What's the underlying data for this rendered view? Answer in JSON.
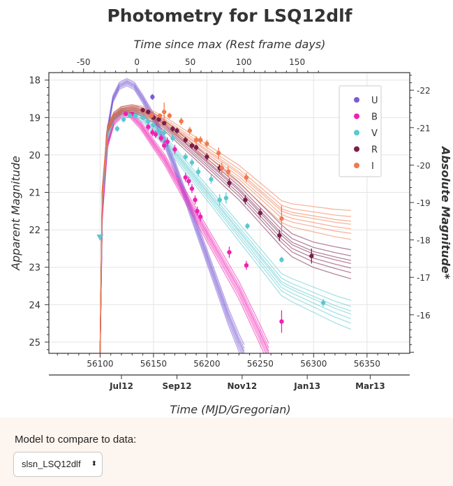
{
  "chart_data": {
    "type": "line",
    "title": "Photometry for LSQ12dlf",
    "xlabel": "Time (MJD/Gregorian)",
    "x2label": "Time since max (Rest frame days)",
    "ylabel": "Apparent Magnitude",
    "y2label": "Absolute Magnitude*",
    "xlim": [
      56052,
      56390
    ],
    "ylim": [
      25.3,
      17.8
    ],
    "y_inverted": true,
    "grid": true,
    "legend_position": "top-right",
    "x_ticks": [
      56100,
      56150,
      56200,
      56250,
      56300,
      56350
    ],
    "x_tick_labels": [
      "56100",
      "56150",
      "56200",
      "56250",
      "56300",
      "56350"
    ],
    "date_ticks": [
      {
        "mjd": 56120,
        "label": "Jul12"
      },
      {
        "mjd": 56172,
        "label": "Sep12"
      },
      {
        "mjd": 56233,
        "label": "Nov12"
      },
      {
        "mjd": 56294,
        "label": "Jan13"
      },
      {
        "mjd": 56353,
        "label": "Mar13"
      }
    ],
    "rest_ticks": [
      {
        "value": -50,
        "label": "-50"
      },
      {
        "value": 0,
        "label": "0"
      },
      {
        "value": 50,
        "label": "50"
      },
      {
        "value": 100,
        "label": "100"
      },
      {
        "value": 150,
        "label": "150"
      }
    ],
    "y_ticks": [
      18,
      19,
      20,
      21,
      22,
      23,
      24,
      25
    ],
    "y_tick_labels": [
      "18",
      "19",
      "20",
      "21",
      "22",
      "23",
      "24",
      "25"
    ],
    "abs_ticks": [
      {
        "value": -22,
        "label": "-22"
      },
      {
        "value": -21,
        "label": "-21"
      },
      {
        "value": -20,
        "label": "-20"
      },
      {
        "value": -19,
        "label": "-19"
      },
      {
        "value": -18,
        "label": "-18"
      },
      {
        "value": -17,
        "label": "-17"
      },
      {
        "value": -16,
        "label": "-16"
      }
    ],
    "series": [
      {
        "name": "U",
        "color": "#7b5bd6",
        "points": [
          [
            56149,
            18.45,
            0.08
          ]
        ],
        "model": [
          [
            56100,
            25.3
          ],
          [
            56102,
            21.5
          ],
          [
            56106,
            19.5
          ],
          [
            56112,
            18.5
          ],
          [
            56118,
            18.15
          ],
          [
            56125,
            18.05
          ],
          [
            56132,
            18.15
          ],
          [
            56140,
            18.5
          ],
          [
            56150,
            19.0
          ],
          [
            56160,
            19.6
          ],
          [
            56170,
            20.3
          ],
          [
            56180,
            21.1
          ],
          [
            56190,
            21.9
          ],
          [
            56200,
            22.7
          ],
          [
            56210,
            23.5
          ],
          [
            56220,
            24.3
          ],
          [
            56230,
            25.0
          ],
          [
            56235,
            25.3
          ]
        ],
        "model_end": 56235
      },
      {
        "name": "B",
        "color": "#f020b4",
        "points": [
          [
            56124,
            18.9,
            0.06
          ],
          [
            56130,
            18.9,
            0.05
          ],
          [
            56140,
            19.0,
            0.06
          ],
          [
            56145,
            19.25,
            0.1
          ],
          [
            56149,
            19.4,
            0.1
          ],
          [
            56152,
            19.45,
            0.1
          ],
          [
            56157,
            19.55,
            0.1
          ],
          [
            56160,
            19.75,
            0.12
          ],
          [
            56163,
            19.65,
            0.12
          ],
          [
            56170,
            19.85,
            0.12
          ],
          [
            56180,
            20.6,
            0.12
          ],
          [
            56183,
            20.7,
            0.12
          ],
          [
            56186,
            20.9,
            0.12
          ],
          [
            56189,
            21.2,
            0.12
          ],
          [
            56191,
            21.5,
            0.12
          ],
          [
            56194,
            21.65,
            0.12
          ],
          [
            56221,
            22.6,
            0.15
          ],
          [
            56237,
            22.95,
            0.12
          ],
          [
            56270,
            24.45,
            0.3
          ]
        ],
        "model": [
          [
            56100,
            25.3
          ],
          [
            56102,
            21.6
          ],
          [
            56107,
            19.7
          ],
          [
            56113,
            19.1
          ],
          [
            56120,
            18.9
          ],
          [
            56128,
            18.9
          ],
          [
            56138,
            19.2
          ],
          [
            56150,
            19.7
          ],
          [
            56160,
            20.1
          ],
          [
            56170,
            20.6
          ],
          [
            56180,
            21.1
          ],
          [
            56190,
            21.6
          ],
          [
            56200,
            22.1
          ],
          [
            56210,
            22.6
          ],
          [
            56220,
            23.1
          ],
          [
            56230,
            23.6
          ],
          [
            56240,
            24.2
          ],
          [
            56250,
            24.8
          ],
          [
            56258,
            25.3
          ]
        ],
        "model_end": 56258
      },
      {
        "name": "V",
        "color": "#5bc8d0",
        "points": [
          [
            56100,
            22.2,
            0.0
          ],
          [
            56116,
            19.3,
            0.08
          ],
          [
            56122,
            19.05,
            0.08
          ],
          [
            56128,
            18.95,
            0.06
          ],
          [
            56133,
            18.95,
            0.06
          ],
          [
            56140,
            19.0,
            0.06
          ],
          [
            56145,
            19.1,
            0.06
          ],
          [
            56150,
            19.2,
            0.08
          ],
          [
            56155,
            19.35,
            0.08
          ],
          [
            56160,
            19.4,
            0.08
          ],
          [
            56168,
            19.55,
            0.1
          ],
          [
            56180,
            20.05,
            0.1
          ],
          [
            56186,
            20.2,
            0.1
          ],
          [
            56192,
            20.45,
            0.12
          ],
          [
            56204,
            20.65,
            0.12
          ],
          [
            56212,
            21.2,
            0.15
          ],
          [
            56218,
            21.15,
            0.15
          ],
          [
            56238,
            21.9,
            0.08
          ],
          [
            56270,
            22.8,
            0.08
          ],
          [
            56309,
            23.95,
            0.1
          ]
        ],
        "model": [
          [
            56100,
            25.3
          ],
          [
            56102,
            21.3
          ],
          [
            56107,
            19.5
          ],
          [
            56113,
            19.0
          ],
          [
            56120,
            18.85
          ],
          [
            56130,
            18.85
          ],
          [
            56140,
            19.0
          ],
          [
            56150,
            19.3
          ],
          [
            56160,
            19.6
          ],
          [
            56170,
            19.95
          ],
          [
            56180,
            20.3
          ],
          [
            56190,
            20.65
          ],
          [
            56200,
            21.0
          ],
          [
            56210,
            21.35
          ],
          [
            56220,
            21.7
          ],
          [
            56230,
            22.05
          ],
          [
            56240,
            22.4
          ],
          [
            56250,
            22.75
          ],
          [
            56260,
            23.1
          ],
          [
            56270,
            23.45
          ],
          [
            56280,
            23.6
          ],
          [
            56300,
            23.85
          ],
          [
            56320,
            24.1
          ],
          [
            56335,
            24.25
          ]
        ],
        "model_end": 56335
      },
      {
        "name": "R",
        "color": "#7a1f4a",
        "points": [
          [
            56140,
            18.8,
            0.06
          ],
          [
            56145,
            18.85,
            0.06
          ],
          [
            56150,
            19.0,
            0.06
          ],
          [
            56155,
            19.05,
            0.06
          ],
          [
            56160,
            19.15,
            0.06
          ],
          [
            56168,
            19.3,
            0.08
          ],
          [
            56172,
            19.35,
            0.08
          ],
          [
            56180,
            19.6,
            0.08
          ],
          [
            56186,
            19.75,
            0.08
          ],
          [
            56190,
            19.8,
            0.08
          ],
          [
            56200,
            20.05,
            0.1
          ],
          [
            56212,
            20.35,
            0.1
          ],
          [
            56221,
            20.75,
            0.12
          ],
          [
            56236,
            21.2,
            0.12
          ],
          [
            56250,
            21.55,
            0.12
          ],
          [
            56268,
            22.15,
            0.15
          ],
          [
            56298,
            22.7,
            0.2
          ]
        ],
        "model": [
          [
            56100,
            25.3
          ],
          [
            56102,
            21.0
          ],
          [
            56107,
            19.3
          ],
          [
            56113,
            18.95
          ],
          [
            56120,
            18.8
          ],
          [
            56130,
            18.75
          ],
          [
            56140,
            18.85
          ],
          [
            56150,
            19.0
          ],
          [
            56160,
            19.2
          ],
          [
            56170,
            19.45
          ],
          [
            56180,
            19.7
          ],
          [
            56190,
            19.95
          ],
          [
            56200,
            20.2
          ],
          [
            56210,
            20.45
          ],
          [
            56220,
            20.7
          ],
          [
            56230,
            20.95
          ],
          [
            56240,
            21.25
          ],
          [
            56250,
            21.55
          ],
          [
            56260,
            21.85
          ],
          [
            56270,
            22.15
          ],
          [
            56280,
            22.4
          ],
          [
            56300,
            22.65
          ],
          [
            56320,
            22.8
          ],
          [
            56335,
            22.9
          ]
        ],
        "model_end": 56335
      },
      {
        "name": "I",
        "color": "#f07a50",
        "points": [
          [
            56148,
            18.95,
            0.06
          ],
          [
            56156,
            18.95,
            0.06
          ],
          [
            56160,
            18.85,
            0.25
          ],
          [
            56165,
            18.95,
            0.08
          ],
          [
            56176,
            19.1,
            0.1
          ],
          [
            56184,
            19.35,
            0.1
          ],
          [
            56190,
            19.6,
            0.1
          ],
          [
            56194,
            19.6,
            0.1
          ],
          [
            56200,
            19.7,
            0.1
          ],
          [
            56211,
            19.95,
            0.15
          ],
          [
            56214,
            20.35,
            0.15
          ],
          [
            56220,
            20.45,
            0.15
          ],
          [
            56237,
            20.6,
            0.12
          ],
          [
            56270,
            21.7,
            0.35
          ]
        ],
        "model": [
          [
            56100,
            25.3
          ],
          [
            56102,
            21.0
          ],
          [
            56107,
            19.3
          ],
          [
            56113,
            18.95
          ],
          [
            56120,
            18.8
          ],
          [
            56130,
            18.75
          ],
          [
            56140,
            18.8
          ],
          [
            56150,
            18.95
          ],
          [
            56160,
            19.1
          ],
          [
            56170,
            19.3
          ],
          [
            56180,
            19.5
          ],
          [
            56190,
            19.7
          ],
          [
            56200,
            19.9
          ],
          [
            56210,
            20.1
          ],
          [
            56220,
            20.3
          ],
          [
            56230,
            20.5
          ],
          [
            56240,
            20.75
          ],
          [
            56250,
            21.0
          ],
          [
            56260,
            21.25
          ],
          [
            56270,
            21.5
          ],
          [
            56280,
            21.6
          ],
          [
            56300,
            21.7
          ],
          [
            56320,
            21.8
          ],
          [
            56335,
            21.85
          ]
        ],
        "model_end": 56335
      }
    ]
  },
  "footer": {
    "model_label": "Model to compare to data:",
    "model_selected": "slsn_LSQ12dlf",
    "select_arrows": "⬍"
  }
}
